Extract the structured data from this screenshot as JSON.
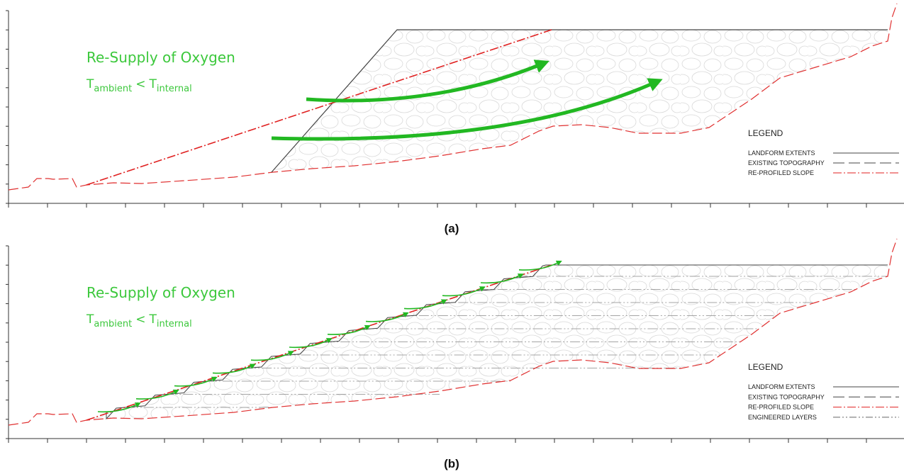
{
  "panels": [
    {
      "label": "(a)",
      "annotation": {
        "title": "Re-Supply of Oxygen",
        "lhs": "T",
        "lhs_sub": "ambient",
        "op": "<",
        "rhs": "T",
        "rhs_sub": "internal"
      },
      "legend": {
        "title": "LEGEND",
        "items": [
          "LANDFORM EXTENTS",
          "EXISTING TOPOGRAPHY",
          "RE-PROFILED SLOPE"
        ]
      }
    },
    {
      "label": "(b)",
      "annotation": {
        "title": "Re-Supply of Oxygen",
        "lhs": "T",
        "lhs_sub": "ambient",
        "op": "<",
        "rhs": "T",
        "rhs_sub": "internal"
      },
      "legend": {
        "title": "LEGEND",
        "items": [
          "LANDFORM EXTENTS",
          "EXISTING TOPOGRAPHY",
          "RE-PROFILED SLOPE",
          "ENGINEERED LAYERS"
        ]
      }
    }
  ]
}
